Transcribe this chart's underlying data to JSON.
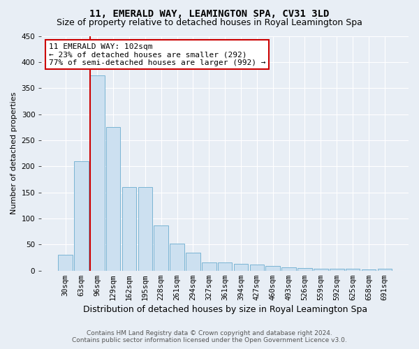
{
  "title": "11, EMERALD WAY, LEAMINGTON SPA, CV31 3LD",
  "subtitle": "Size of property relative to detached houses in Royal Leamington Spa",
  "xlabel": "Distribution of detached houses by size in Royal Leamington Spa",
  "ylabel": "Number of detached properties",
  "footer_line1": "Contains HM Land Registry data © Crown copyright and database right 2024.",
  "footer_line2": "Contains public sector information licensed under the Open Government Licence v3.0.",
  "bin_labels": [
    "30sqm",
    "63sqm",
    "96sqm",
    "129sqm",
    "162sqm",
    "195sqm",
    "228sqm",
    "261sqm",
    "294sqm",
    "327sqm",
    "361sqm",
    "394sqm",
    "427sqm",
    "460sqm",
    "493sqm",
    "526sqm",
    "559sqm",
    "592sqm",
    "625sqm",
    "658sqm",
    "691sqm"
  ],
  "bar_values": [
    30,
    210,
    375,
    275,
    160,
    160,
    87,
    52,
    35,
    15,
    15,
    13,
    12,
    9,
    6,
    5,
    4,
    3,
    3,
    2,
    4
  ],
  "bar_color": "#cce0f0",
  "bar_edge_color": "#7ab4d4",
  "background_color": "#e8eef5",
  "grid_color": "#ffffff",
  "annotation_line1": "11 EMERALD WAY: 102sqm",
  "annotation_line2": "← 23% of detached houses are smaller (292)",
  "annotation_line3": "77% of semi-detached houses are larger (992) →",
  "annotation_box_color": "#ffffff",
  "annotation_box_edge": "#cc0000",
  "red_line_color": "#cc0000",
  "red_line_bar_index": 2,
  "ylim_max": 450,
  "yticks": [
    0,
    50,
    100,
    150,
    200,
    250,
    300,
    350,
    400,
    450
  ],
  "title_fontsize": 10,
  "subtitle_fontsize": 9,
  "xlabel_fontsize": 9,
  "ylabel_fontsize": 8,
  "tick_fontsize": 7.5,
  "annot_fontsize": 8
}
